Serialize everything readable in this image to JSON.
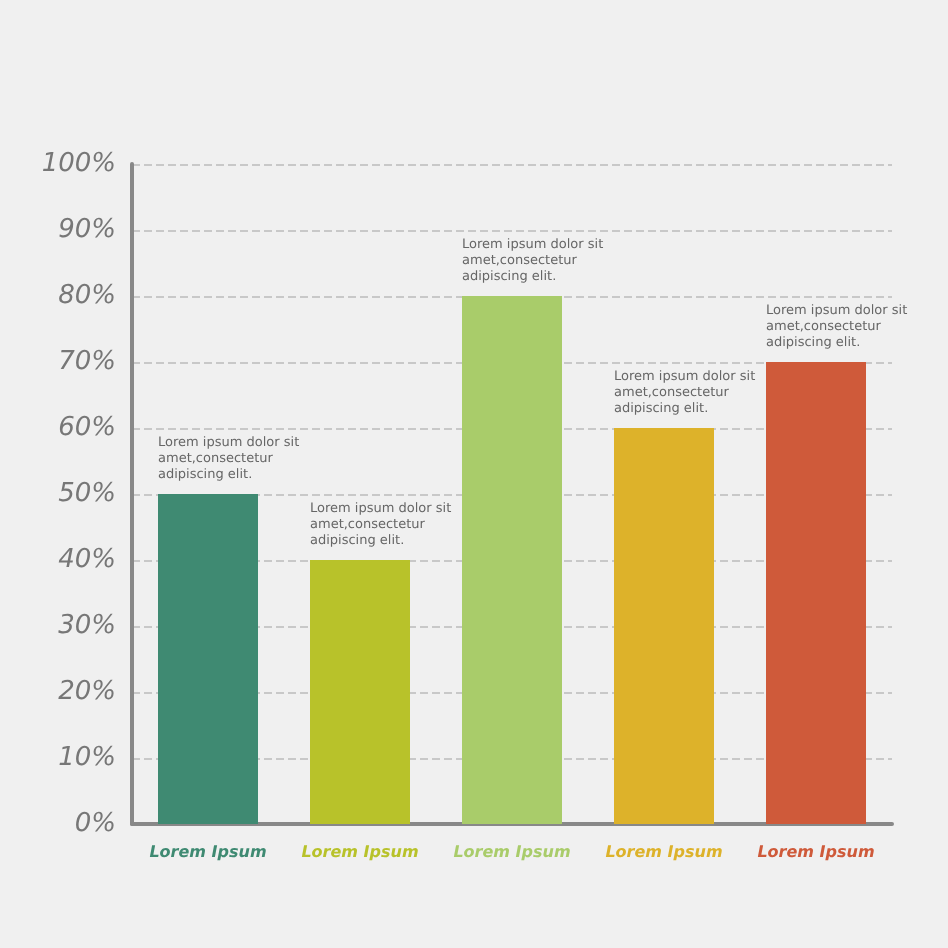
{
  "chart_data": {
    "type": "bar",
    "categories": [
      "Lorem Ipsum",
      "Lorem Ipsum",
      "Lorem Ipsum",
      "Lorem Ipsum",
      "Lorem Ipsum"
    ],
    "values": [
      50,
      40,
      80,
      60,
      70
    ],
    "colors": [
      "#3f8a72",
      "#b8c22a",
      "#a9cc6a",
      "#ddb22a",
      "#cf5a3a"
    ],
    "ylim": [
      0,
      100
    ],
    "yticks": [
      {
        "value": 0,
        "label": "0%"
      },
      {
        "value": 10,
        "label": "10%"
      },
      {
        "value": 20,
        "label": "20%"
      },
      {
        "value": 30,
        "label": "30%"
      },
      {
        "value": 40,
        "label": "40%"
      },
      {
        "value": 50,
        "label": "50%"
      },
      {
        "value": 60,
        "label": "60%"
      },
      {
        "value": 70,
        "label": "70%"
      },
      {
        "value": 80,
        "label": "80%"
      },
      {
        "value": 90,
        "label": "90%"
      },
      {
        "value": 100,
        "label": "100%"
      }
    ],
    "grid": "y",
    "annotations": [
      "Lorem ipsum dolor sit amet,consectetur adipiscing elit.",
      "Lorem ipsum dolor sit amet,consectetur adipiscing elit.",
      "Lorem ipsum dolor sit amet,consectetur adipiscing elit.",
      "Lorem ipsum dolor sit amet,consectetur adipiscing elit.",
      "Lorem ipsum dolor sit amet,consectetur adipiscing elit."
    ]
  }
}
